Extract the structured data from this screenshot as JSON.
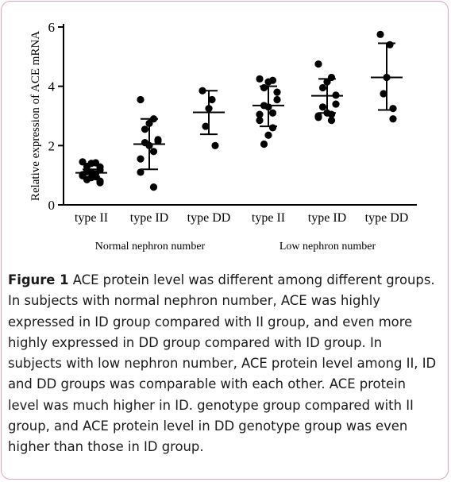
{
  "chart_data": {
    "type": "scatter",
    "ylabel": "Relative expression of ACE mRNA",
    "ylim": [
      0,
      6
    ],
    "yticks": [
      0,
      2,
      4,
      6
    ],
    "categories": [
      "type II",
      "type ID",
      "type DD",
      "type II",
      "type ID",
      "type DD"
    ],
    "groups": [
      {
        "label": "Normal nephron number",
        "categories": [
          0,
          1,
          2
        ]
      },
      {
        "label": "Low nephron number",
        "categories": [
          3,
          4,
          5
        ]
      }
    ],
    "series": [
      {
        "category": "type II",
        "group": "Normal nephron number",
        "values": [
          1.45,
          1.42,
          1.4,
          1.3,
          1.28,
          1.18,
          1.12,
          1.1,
          1.05,
          1.02,
          0.98,
          0.95,
          0.92,
          0.85,
          0.8,
          0.75
        ],
        "mean": 1.08,
        "sd_low": 0.95,
        "sd_high": 1.2
      },
      {
        "category": "type ID",
        "group": "Normal nephron number",
        "values": [
          3.55,
          2.9,
          2.75,
          2.55,
          2.2,
          2.15,
          2.1,
          2.0,
          1.8,
          1.55,
          1.1,
          0.6
        ],
        "mean": 2.05,
        "sd_low": 1.2,
        "sd_high": 2.9
      },
      {
        "category": "type DD",
        "group": "Normal nephron number",
        "values": [
          3.85,
          3.55,
          3.25,
          2.65,
          2.0
        ],
        "mean": 3.12,
        "sd_low": 2.38,
        "sd_high": 3.85
      },
      {
        "category": "type II",
        "group": "Low nephron number",
        "values": [
          4.25,
          4.2,
          4.15,
          3.95,
          3.8,
          3.55,
          3.35,
          3.3,
          3.1,
          3.05,
          2.85,
          2.6,
          2.35,
          2.05
        ],
        "mean": 3.35,
        "sd_low": 2.65,
        "sd_high": 4.0
      },
      {
        "category": "type ID",
        "group": "Low nephron number",
        "values": [
          4.75,
          4.3,
          4.15,
          3.95,
          3.7,
          3.4,
          3.3,
          3.1,
          3.05,
          3.0,
          2.95,
          2.85
        ],
        "mean": 3.68,
        "sd_low": 3.1,
        "sd_high": 4.25
      },
      {
        "category": "type DD",
        "group": "Low nephron number",
        "values": [
          5.75,
          5.4,
          4.3,
          3.75,
          3.25,
          2.9
        ],
        "mean": 4.3,
        "sd_low": 3.2,
        "sd_high": 5.45
      }
    ]
  },
  "caption": {
    "label": "Figure 1",
    "text": " ACE protein level was different among different groups. In subjects with normal nephron number, ACE was highly expressed in ID group compared with II group, and even more highly expressed in DD group compared with ID group. In subjects with low nephron number, ACE protein level among II, ID and DD groups was comparable with each other. ACE protein level was much higher in ID. genotype group compared with II group, and ACE protein level in DD genotype group was even higher than those in ID group."
  }
}
